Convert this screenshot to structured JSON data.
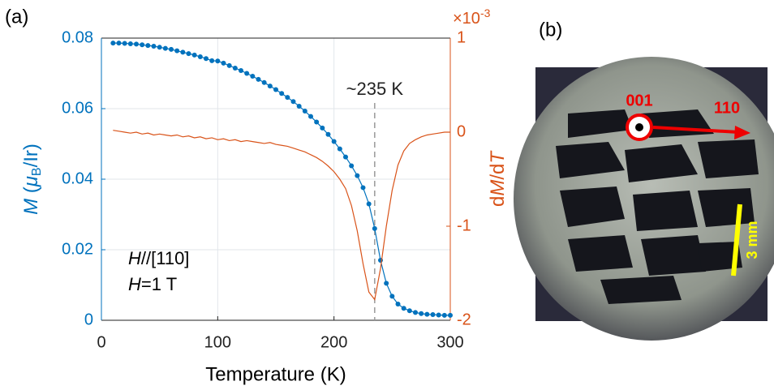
{
  "chart_data": {
    "type": "line",
    "panel_label": "(a)",
    "xlabel": "Temperature (K)",
    "ylabel": {
      "symbol": "M",
      "open": " (",
      "mu": "μ",
      "sub": "B",
      "rest": "/Ir)"
    },
    "y2label": {
      "d1": "d",
      "symbol1": "M",
      "d2": "/d",
      "symbol2": "T"
    },
    "y2_scale": {
      "base": "×10",
      "exponent": "-3"
    },
    "annotation": {
      "text": "~235 K",
      "x": 235
    },
    "field_notes": [
      {
        "symbol": "H",
        "text": "//[110]"
      },
      {
        "symbol": "H",
        "text": "=1 T"
      }
    ],
    "xlim": [
      0,
      300
    ],
    "xticks": [
      0,
      100,
      200,
      300
    ],
    "ylim": [
      0,
      0.08
    ],
    "yticks": [
      0,
      0.02,
      0.04,
      0.06,
      0.08
    ],
    "y2lim": [
      -2,
      1
    ],
    "y2ticks": [
      -2,
      -1,
      0,
      1
    ],
    "grid": true,
    "x": [
      10,
      15,
      20,
      25,
      30,
      35,
      40,
      45,
      50,
      55,
      60,
      65,
      70,
      75,
      80,
      85,
      90,
      95,
      100,
      105,
      110,
      115,
      120,
      125,
      130,
      135,
      140,
      145,
      150,
      155,
      160,
      165,
      170,
      175,
      180,
      185,
      190,
      195,
      200,
      205,
      210,
      215,
      220,
      225,
      230,
      235,
      240,
      245,
      250,
      255,
      260,
      265,
      270,
      275,
      280,
      285,
      290,
      295,
      300
    ],
    "series": [
      {
        "name": "M",
        "color": "#0072bd",
        "markers": true,
        "values": [
          0.0786,
          0.0786,
          0.0785,
          0.0784,
          0.0783,
          0.0781,
          0.0779,
          0.0777,
          0.0774,
          0.0771,
          0.0768,
          0.0764,
          0.076,
          0.0756,
          0.0752,
          0.0747,
          0.0742,
          0.0736,
          0.0735,
          0.0729,
          0.0722,
          0.0715,
          0.0708,
          0.07,
          0.0692,
          0.0683,
          0.0674,
          0.0664,
          0.0654,
          0.0643,
          0.0632,
          0.062,
          0.0607,
          0.0593,
          0.0578,
          0.0562,
          0.0545,
          0.0527,
          0.0507,
          0.0486,
          0.0463,
          0.0438,
          0.041,
          0.0376,
          0.033,
          0.026,
          0.017,
          0.0105,
          0.0068,
          0.0046,
          0.0034,
          0.0027,
          0.0022,
          0.0019,
          0.0017,
          0.0016,
          0.0015,
          0.0014,
          0.0014
        ]
      },
      {
        "name": "dM/dT",
        "color": "#d95319",
        "axis": "y2",
        "markers": false,
        "values": [
          0.02,
          0.01,
          0,
          -0.01,
          0,
          -0.02,
          -0.01,
          -0.03,
          -0.02,
          -0.03,
          -0.04,
          -0.03,
          -0.05,
          -0.04,
          -0.06,
          -0.05,
          -0.07,
          -0.06,
          -0.08,
          -0.07,
          -0.09,
          -0.08,
          -0.1,
          -0.09,
          -0.1,
          -0.11,
          -0.12,
          -0.11,
          -0.13,
          -0.14,
          -0.15,
          -0.17,
          -0.19,
          -0.21,
          -0.24,
          -0.27,
          -0.31,
          -0.36,
          -0.42,
          -0.5,
          -0.6,
          -0.78,
          -1.05,
          -1.4,
          -1.7,
          -1.78,
          -1.45,
          -1,
          -0.62,
          -0.35,
          -0.2,
          -0.12,
          -0.08,
          -0.05,
          -0.03,
          -0.02,
          -0.01,
          0,
          0
        ]
      }
    ]
  },
  "photo": {
    "panel_label": "(b)",
    "direction_out": "001",
    "direction_in_plane": "110",
    "scale_bar": "3 mm"
  }
}
